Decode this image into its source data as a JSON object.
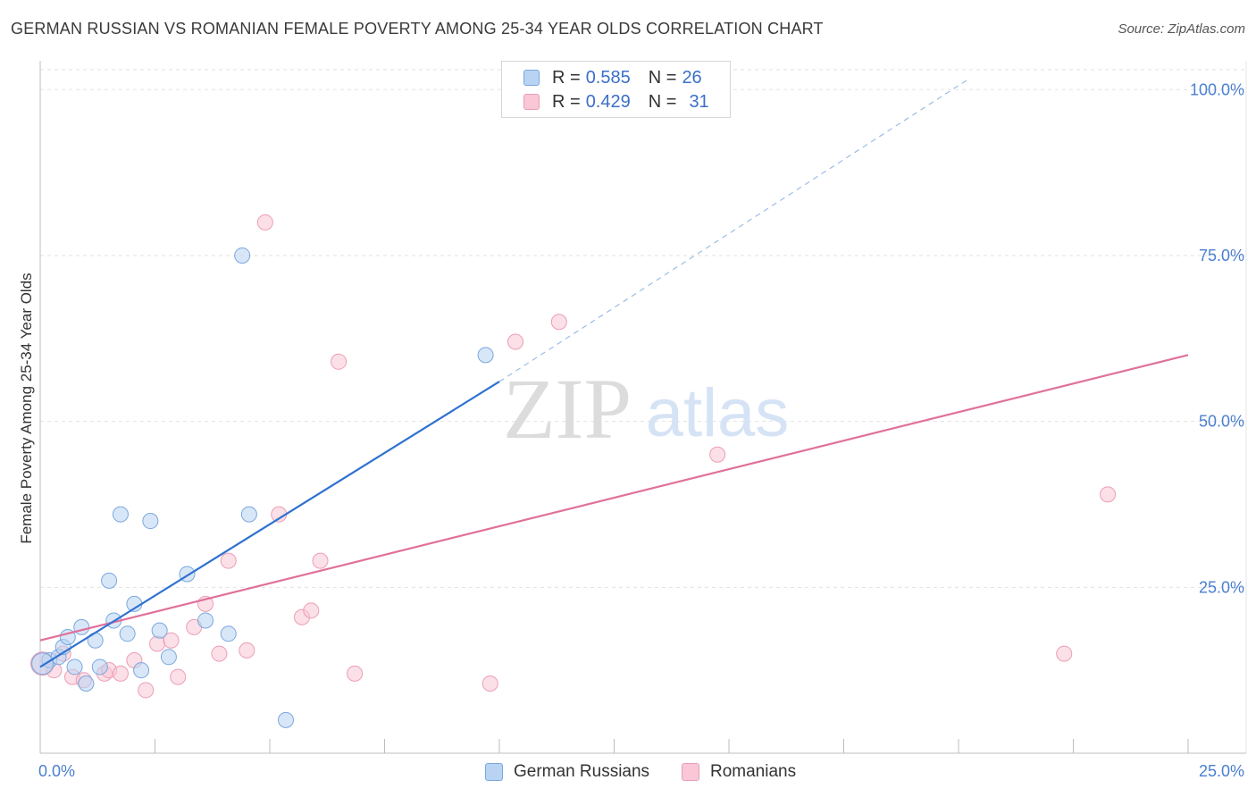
{
  "header": {
    "title": "GERMAN RUSSIAN VS ROMANIAN FEMALE POVERTY AMONG 25-34 YEAR OLDS CORRELATION CHART",
    "source": "Source: ZipAtlas.com"
  },
  "watermark": {
    "zip": "ZIP",
    "atlas": "atlas"
  },
  "legend_stats": [
    {
      "r_label": "R =",
      "r_value": "0.585",
      "n_label": "N =",
      "n_value": "26"
    },
    {
      "r_label": "R =",
      "r_value": "0.429",
      "n_label": "N =",
      "n_value": "31"
    }
  ],
  "chart_data": {
    "type": "scatter",
    "title": "GERMAN RUSSIAN VS ROMANIAN FEMALE POVERTY AMONG 25-34 YEAR OLDS CORRELATION CHART",
    "xlabel": "",
    "ylabel": "Female Poverty Among 25-34 Year Olds",
    "xlim": [
      0,
      25
    ],
    "ylim": [
      0,
      103
    ],
    "x_tick_labels": [
      "0.0%",
      "25.0%"
    ],
    "y_ticks": [
      25,
      50,
      75,
      100
    ],
    "y_tick_labels": [
      "25.0%",
      "50.0%",
      "75.0%",
      "100.0%"
    ],
    "grid": true,
    "legend_position": "bottom",
    "colors": {
      "german_russians": "#2f72d0",
      "romanians": "#e0709a",
      "tick_label": "#4a7fd0"
    },
    "series": [
      {
        "name": "German Russians",
        "r": 0.585,
        "n": 26,
        "points": [
          [
            0.2,
            14.0
          ],
          [
            0.4,
            14.5
          ],
          [
            0.5,
            16.0
          ],
          [
            0.6,
            17.5
          ],
          [
            0.75,
            13.0
          ],
          [
            0.9,
            19.0
          ],
          [
            1.0,
            10.5
          ],
          [
            1.2,
            17.0
          ],
          [
            1.3,
            13.0
          ],
          [
            1.5,
            26.0
          ],
          [
            1.6,
            20.0
          ],
          [
            1.75,
            36.0
          ],
          [
            1.9,
            18.0
          ],
          [
            2.05,
            22.5
          ],
          [
            2.2,
            12.5
          ],
          [
            2.4,
            35.0
          ],
          [
            2.6,
            18.5
          ],
          [
            2.8,
            14.5
          ],
          [
            3.2,
            27.0
          ],
          [
            3.6,
            20.0
          ],
          [
            4.1,
            18.0
          ],
          [
            4.4,
            75.0
          ],
          [
            4.55,
            36.0
          ],
          [
            5.35,
            5.0
          ],
          [
            9.7,
            60.0
          ],
          [
            0.05,
            13.5
          ]
        ],
        "trend": {
          "x0": 0.0,
          "y0": 13.0,
          "x1": 10.0,
          "y1": 56.0,
          "dashed_x1": 20.2,
          "dashed_y1": 101.5
        }
      },
      {
        "name": "Romanians",
        "r": 0.429,
        "n": 31,
        "points": [
          [
            0.05,
            13.5
          ],
          [
            0.3,
            12.5
          ],
          [
            0.5,
            15.0
          ],
          [
            0.7,
            11.5
          ],
          [
            0.95,
            11.0
          ],
          [
            1.4,
            12.0
          ],
          [
            1.5,
            12.5
          ],
          [
            1.75,
            12.0
          ],
          [
            2.05,
            14.0
          ],
          [
            2.3,
            9.5
          ],
          [
            2.55,
            16.5
          ],
          [
            2.85,
            17.0
          ],
          [
            3.0,
            11.5
          ],
          [
            3.35,
            19.0
          ],
          [
            3.6,
            22.5
          ],
          [
            3.9,
            15.0
          ],
          [
            4.1,
            29.0
          ],
          [
            4.5,
            15.5
          ],
          [
            4.9,
            80.0
          ],
          [
            5.2,
            36.0
          ],
          [
            5.7,
            20.5
          ],
          [
            5.9,
            21.5
          ],
          [
            6.1,
            29.0
          ],
          [
            6.5,
            59.0
          ],
          [
            6.85,
            12.0
          ],
          [
            9.8,
            10.5
          ],
          [
            10.35,
            62.0
          ],
          [
            11.3,
            65.0
          ],
          [
            14.75,
            45.0
          ],
          [
            22.3,
            15.0
          ],
          [
            23.25,
            39.0
          ]
        ],
        "trend": {
          "x0": 0.0,
          "y0": 17.0,
          "x1": 25.0,
          "y1": 60.0
        }
      }
    ]
  }
}
